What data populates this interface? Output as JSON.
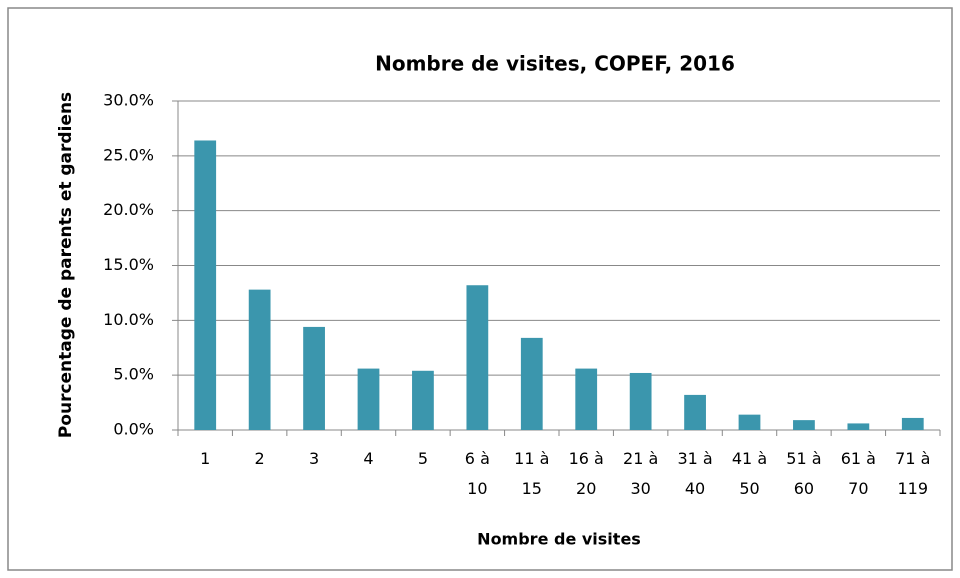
{
  "chart_data": {
    "type": "bar",
    "title": "Nombre de visites, COPEF, 2016",
    "x_label": "Nombre de visites",
    "y_label": "Pourcentage de parents et gardiens",
    "categories": [
      "1",
      "2",
      "3",
      "4",
      "5",
      "6 à 10",
      "11 à 15",
      "16 à 20",
      "21 à 30",
      "31 à 40",
      "41 à 50",
      "51 à 60",
      "61 à 70",
      "71 à 119"
    ],
    "values": [
      26.4,
      12.8,
      9.4,
      5.6,
      5.4,
      13.2,
      8.4,
      5.6,
      5.2,
      3.2,
      1.4,
      0.9,
      0.6,
      1.1
    ],
    "color": "#3b96ad",
    "ylim": [
      0,
      30
    ],
    "yticks": [
      {
        "value": 0,
        "label": "0.0%"
      },
      {
        "value": 5,
        "label": "5.0%"
      },
      {
        "value": 10,
        "label": "10.0%"
      },
      {
        "value": 15,
        "label": "15.0%"
      },
      {
        "value": 20,
        "label": "20.0%"
      },
      {
        "value": 25,
        "label": "25.0%"
      },
      {
        "value": 30,
        "label": "30.0%"
      }
    ],
    "grid": true
  }
}
